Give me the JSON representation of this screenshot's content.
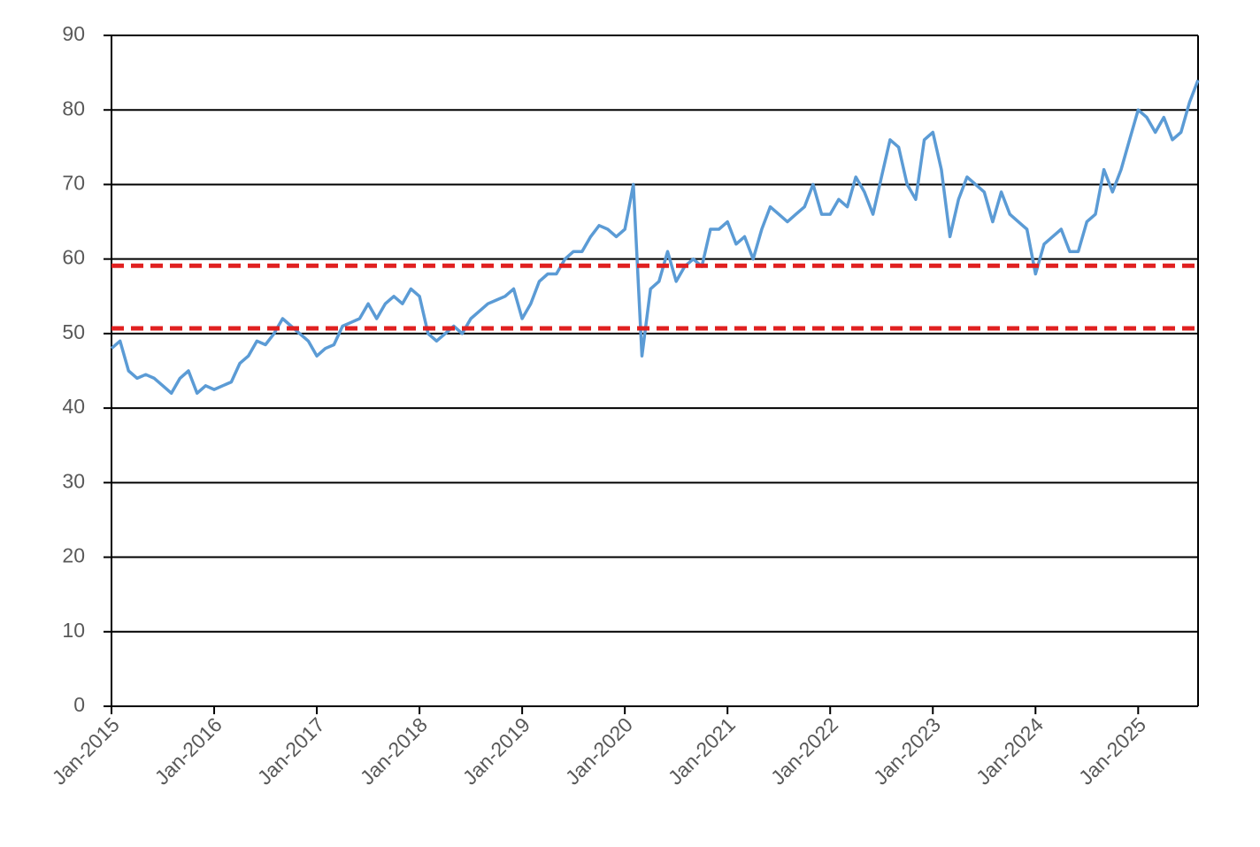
{
  "chart_data": {
    "type": "line",
    "x": [
      "2015-01",
      "2015-02",
      "2015-03",
      "2015-04",
      "2015-05",
      "2015-06",
      "2015-07",
      "2015-08",
      "2015-09",
      "2015-10",
      "2015-11",
      "2015-12",
      "2016-01",
      "2016-02",
      "2016-03",
      "2016-04",
      "2016-05",
      "2016-06",
      "2016-07",
      "2016-08",
      "2016-09",
      "2016-10",
      "2016-11",
      "2016-12",
      "2017-01",
      "2017-02",
      "2017-03",
      "2017-04",
      "2017-05",
      "2017-06",
      "2017-07",
      "2017-08",
      "2017-09",
      "2017-10",
      "2017-11",
      "2017-12",
      "2018-01",
      "2018-02",
      "2018-03",
      "2018-04",
      "2018-05",
      "2018-06",
      "2018-07",
      "2018-08",
      "2018-09",
      "2018-10",
      "2018-11",
      "2018-12",
      "2019-01",
      "2019-02",
      "2019-03",
      "2019-04",
      "2019-05",
      "2019-06",
      "2019-07",
      "2019-08",
      "2019-09",
      "2019-10",
      "2019-11",
      "2019-12",
      "2020-01",
      "2020-02",
      "2020-03",
      "2020-04",
      "2020-05",
      "2020-06",
      "2020-07",
      "2020-08",
      "2020-09",
      "2020-10",
      "2020-11",
      "2020-12",
      "2021-01",
      "2021-02",
      "2021-03",
      "2021-04",
      "2021-05",
      "2021-06",
      "2021-07",
      "2021-08",
      "2021-09",
      "2021-10",
      "2021-11",
      "2021-12",
      "2022-01",
      "2022-02",
      "2022-03",
      "2022-04",
      "2022-05",
      "2022-06",
      "2022-07",
      "2022-08",
      "2022-09",
      "2022-10",
      "2022-11",
      "2022-12",
      "2023-01",
      "2023-02",
      "2023-03",
      "2023-04",
      "2023-05",
      "2023-06",
      "2023-07",
      "2023-08",
      "2023-09",
      "2023-10",
      "2023-11",
      "2023-12",
      "2024-01",
      "2024-02",
      "2024-03",
      "2024-04",
      "2024-05",
      "2024-06",
      "2024-07",
      "2024-08",
      "2024-09",
      "2024-10",
      "2024-11",
      "2024-12",
      "2025-01",
      "2025-02",
      "2025-03",
      "2025-04",
      "2025-05",
      "2025-06",
      "2025-07",
      "2025-08"
    ],
    "series": [
      {
        "color": "#5b9bd5",
        "values": [
          48,
          49,
          45,
          44,
          44.5,
          44,
          43,
          42,
          44,
          45,
          42,
          43,
          42.5,
          43,
          43.5,
          46,
          47,
          49,
          48.5,
          50,
          52,
          51,
          50,
          49,
          47,
          48,
          48.5,
          51,
          51.5,
          52,
          54,
          52,
          54,
          55,
          54,
          56,
          55,
          50,
          49,
          50,
          51,
          50,
          52,
          53,
          54,
          54.5,
          55,
          56,
          52,
          54,
          57,
          58,
          58,
          60,
          61,
          61,
          63,
          64.5,
          64,
          63,
          64,
          70,
          47,
          56,
          57,
          61,
          57,
          59,
          60,
          59,
          64,
          64,
          65,
          62,
          63,
          60,
          64,
          67,
          66,
          65,
          66,
          67,
          70,
          66,
          66,
          68,
          67,
          71,
          69,
          66,
          71,
          76,
          75,
          70,
          68,
          76,
          77,
          72,
          63,
          68,
          71,
          70,
          69,
          65,
          69,
          66,
          65,
          64,
          58,
          62,
          63,
          64,
          61,
          61,
          65,
          66,
          72,
          69,
          72,
          76,
          80,
          79,
          77,
          79,
          76,
          77,
          81,
          84
        ]
      }
    ],
    "reference_lines": [
      {
        "value": 59.1,
        "color": "#e02020"
      },
      {
        "value": 50.7,
        "color": "#e02020"
      }
    ],
    "xlim": [
      "2015-01",
      "2025-08"
    ],
    "xticks": [
      {
        "value": "2015-01",
        "label": "Jan-2015"
      },
      {
        "value": "2016-01",
        "label": "Jan-2016"
      },
      {
        "value": "2017-01",
        "label": "Jan-2017"
      },
      {
        "value": "2018-01",
        "label": "Jan-2018"
      },
      {
        "value": "2019-01",
        "label": "Jan-2019"
      },
      {
        "value": "2020-01",
        "label": "Jan-2020"
      },
      {
        "value": "2021-01",
        "label": "Jan-2021"
      },
      {
        "value": "2022-01",
        "label": "Jan-2022"
      },
      {
        "value": "2023-01",
        "label": "Jan-2023"
      },
      {
        "value": "2024-01",
        "label": "Jan-2024"
      },
      {
        "value": "2025-01",
        "label": "Jan-2025"
      }
    ],
    "ylim": [
      0,
      90
    ],
    "yticks": [
      0,
      10,
      20,
      30,
      40,
      50,
      60,
      70,
      80,
      90
    ],
    "grid": true
  }
}
